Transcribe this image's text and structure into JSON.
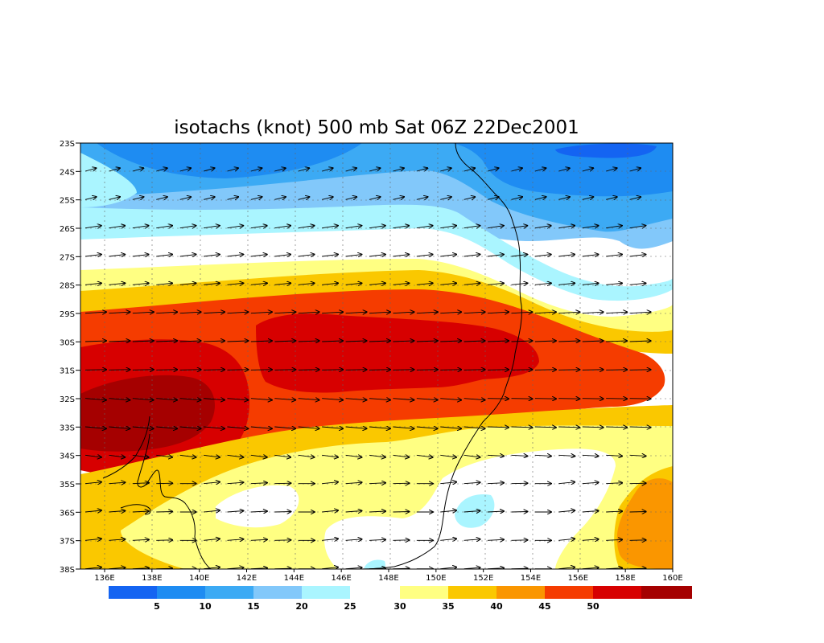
{
  "title": "isotachs (knot) 500 mb Sat 06Z 22Dec2001",
  "lat_labels": [
    "23S",
    "24S",
    "25S",
    "26S",
    "27S",
    "28S",
    "29S",
    "30S",
    "31S",
    "32S",
    "33S",
    "34S",
    "35S",
    "36S",
    "37S",
    "38S"
  ],
  "lon_labels": [
    "136E",
    "138E",
    "140E",
    "142E",
    "144E",
    "146E",
    "148E",
    "150E",
    "152E",
    "154E",
    "156E",
    "158E",
    "160E"
  ],
  "colors": {
    "c0_5": "#1464f2",
    "c5_10": "#1e8cf2",
    "c10_15": "#3caaf4",
    "c15_20": "#82c8fa",
    "c20_25": "#aaf5ff",
    "c25_30": "#ffffff",
    "c30_35": "#ffff82",
    "c35_40": "#fac800",
    "c40_45": "#fa9600",
    "c45_50": "#f53c00",
    "c50_55": "#d70000",
    "c55p": "#a50000"
  },
  "colorbar": {
    "left_labels": [
      "5",
      "10",
      "15",
      "20",
      "25"
    ],
    "right_labels": [
      "30",
      "35",
      "40",
      "45",
      "50"
    ]
  }
}
